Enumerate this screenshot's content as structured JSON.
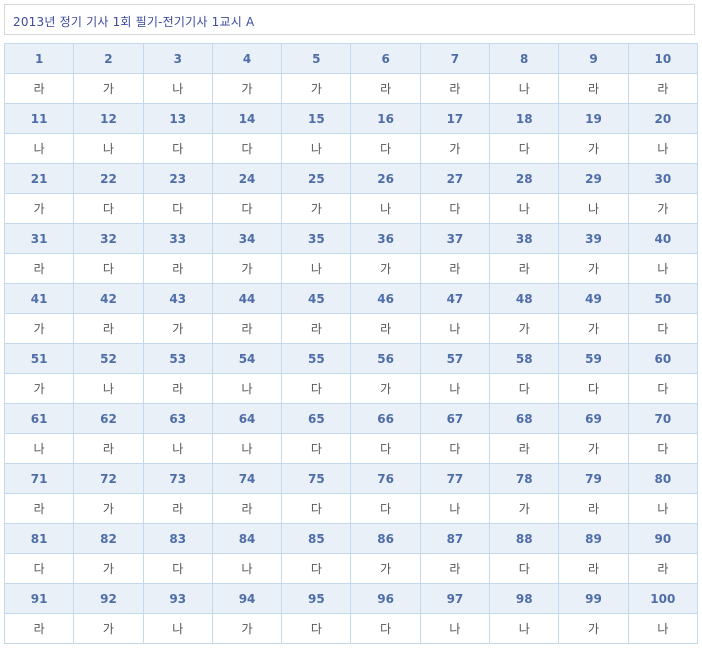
{
  "title": "2013년 정기 기사 1회 필기-전기기사 1교시 A",
  "colors": {
    "header_bg": "#eaf0f8",
    "header_text": "#4f6ea9",
    "border": "#c5d9ee",
    "title_text": "#3d4aa0"
  },
  "groups": [
    {
      "numbers": [
        "1",
        "2",
        "3",
        "4",
        "5",
        "6",
        "7",
        "8",
        "9",
        "10"
      ],
      "answers": [
        "라",
        "가",
        "나",
        "가",
        "가",
        "라",
        "라",
        "나",
        "라",
        "라"
      ]
    },
    {
      "numbers": [
        "11",
        "12",
        "13",
        "14",
        "15",
        "16",
        "17",
        "18",
        "19",
        "20"
      ],
      "answers": [
        "나",
        "나",
        "다",
        "다",
        "나",
        "다",
        "가",
        "다",
        "가",
        "나"
      ]
    },
    {
      "numbers": [
        "21",
        "22",
        "23",
        "24",
        "25",
        "26",
        "27",
        "28",
        "29",
        "30"
      ],
      "answers": [
        "가",
        "다",
        "다",
        "다",
        "가",
        "나",
        "다",
        "나",
        "나",
        "가"
      ]
    },
    {
      "numbers": [
        "31",
        "32",
        "33",
        "34",
        "35",
        "36",
        "37",
        "38",
        "39",
        "40"
      ],
      "answers": [
        "라",
        "다",
        "라",
        "가",
        "나",
        "가",
        "라",
        "라",
        "가",
        "나"
      ]
    },
    {
      "numbers": [
        "41",
        "42",
        "43",
        "44",
        "45",
        "46",
        "47",
        "48",
        "49",
        "50"
      ],
      "answers": [
        "가",
        "라",
        "가",
        "라",
        "라",
        "라",
        "나",
        "가",
        "가",
        "다"
      ]
    },
    {
      "numbers": [
        "51",
        "52",
        "53",
        "54",
        "55",
        "56",
        "57",
        "58",
        "59",
        "60"
      ],
      "answers": [
        "가",
        "나",
        "라",
        "나",
        "다",
        "가",
        "나",
        "다",
        "다",
        "다"
      ]
    },
    {
      "numbers": [
        "61",
        "62",
        "63",
        "64",
        "65",
        "66",
        "67",
        "68",
        "69",
        "70"
      ],
      "answers": [
        "나",
        "라",
        "나",
        "나",
        "다",
        "다",
        "다",
        "라",
        "가",
        "다"
      ]
    },
    {
      "numbers": [
        "71",
        "72",
        "73",
        "74",
        "75",
        "76",
        "77",
        "78",
        "79",
        "80"
      ],
      "answers": [
        "라",
        "가",
        "라",
        "라",
        "다",
        "다",
        "나",
        "가",
        "라",
        "나"
      ]
    },
    {
      "numbers": [
        "81",
        "82",
        "83",
        "84",
        "85",
        "86",
        "87",
        "88",
        "89",
        "90"
      ],
      "answers": [
        "다",
        "가",
        "다",
        "나",
        "다",
        "가",
        "라",
        "다",
        "라",
        "라"
      ]
    },
    {
      "numbers": [
        "91",
        "92",
        "93",
        "94",
        "95",
        "96",
        "97",
        "98",
        "99",
        "100"
      ],
      "answers": [
        "라",
        "가",
        "나",
        "가",
        "다",
        "다",
        "나",
        "나",
        "가",
        "나"
      ]
    }
  ]
}
